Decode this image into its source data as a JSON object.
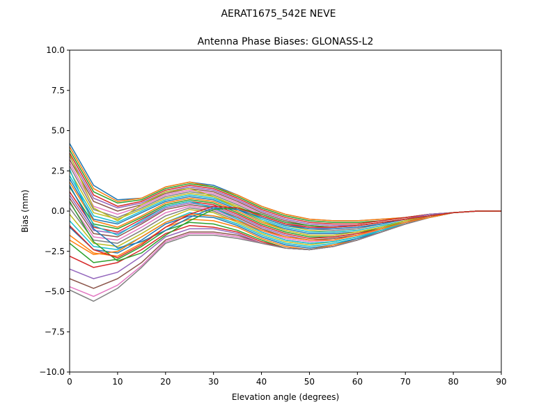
{
  "figure": {
    "suptitle": "AERAT1675_542E  NEVE"
  },
  "chart_data": {
    "type": "line",
    "title": "Antenna Phase Biases: GLONASS-L2",
    "xlabel": "Elevation angle (degrees)",
    "ylabel": "Bias (mm)",
    "xlim": [
      0,
      90
    ],
    "ylim": [
      -10,
      10
    ],
    "xticks": [
      0,
      10,
      20,
      30,
      40,
      50,
      60,
      70,
      80,
      90
    ],
    "xtick_labels": [
      "0",
      "10",
      "20",
      "30",
      "40",
      "50",
      "60",
      "70",
      "80",
      "90"
    ],
    "yticks": [
      10,
      7.5,
      5,
      2.5,
      0,
      -2.5,
      -5,
      -7.5,
      -10
    ],
    "ytick_labels": [
      "10.0",
      "7.5",
      "5.0",
      "2.5",
      "0.0",
      "−2.5",
      "−5.0",
      "−7.5",
      "−10.0"
    ],
    "grid": false,
    "legend": "none",
    "colors": [
      "#1f77b4",
      "#ff7f0e",
      "#2ca02c",
      "#d62728",
      "#9467bd",
      "#8c564b",
      "#e377c2",
      "#7f7f7f",
      "#bcbd22",
      "#17becf"
    ],
    "x": [
      0,
      5,
      10,
      15,
      20,
      25,
      30,
      35,
      40,
      45,
      50,
      55,
      60,
      65,
      70,
      75,
      80,
      85,
      90
    ],
    "series": [
      {
        "values": [
          4.2,
          1.6,
          0.7,
          0.8,
          1.5,
          1.8,
          1.6,
          1.0,
          0.3,
          -0.2,
          -0.5,
          -0.6,
          -0.6,
          -0.5,
          -0.4,
          -0.2,
          -0.1,
          0.0,
          0.0
        ]
      },
      {
        "values": [
          4.0,
          1.4,
          0.6,
          0.8,
          1.5,
          1.8,
          1.5,
          1.0,
          0.3,
          -0.2,
          -0.5,
          -0.6,
          -0.6,
          -0.5,
          -0.4,
          -0.2,
          -0.1,
          0.0,
          0.0
        ]
      },
      {
        "values": [
          3.8,
          1.2,
          0.5,
          0.7,
          1.4,
          1.7,
          1.5,
          0.9,
          0.2,
          -0.3,
          -0.6,
          -0.7,
          -0.7,
          -0.6,
          -0.4,
          -0.2,
          -0.1,
          0.0,
          0.0
        ]
      },
      {
        "values": [
          3.6,
          1.0,
          0.3,
          0.6,
          1.3,
          1.6,
          1.4,
          0.8,
          0.1,
          -0.4,
          -0.7,
          -0.8,
          -0.8,
          -0.6,
          -0.4,
          -0.2,
          -0.1,
          0.0,
          0.0
        ]
      },
      {
        "values": [
          3.4,
          0.8,
          0.2,
          0.5,
          1.2,
          1.5,
          1.3,
          0.7,
          0.0,
          -0.5,
          -0.8,
          -0.9,
          -0.9,
          -0.7,
          -0.5,
          -0.2,
          -0.1,
          0.0,
          0.0
        ]
      },
      {
        "values": [
          3.2,
          0.6,
          0.0,
          0.4,
          1.1,
          1.4,
          1.2,
          0.6,
          -0.1,
          -0.6,
          -0.9,
          -1.0,
          -0.9,
          -0.7,
          -0.5,
          -0.3,
          -0.1,
          0.0,
          0.0
        ]
      },
      {
        "values": [
          3.0,
          0.3,
          -0.2,
          0.3,
          1.0,
          1.3,
          1.1,
          0.5,
          -0.2,
          -0.7,
          -1.0,
          -1.1,
          -1.0,
          -0.8,
          -0.5,
          -0.3,
          -0.1,
          0.0,
          0.0
        ]
      },
      {
        "values": [
          2.8,
          0.1,
          -0.4,
          0.2,
          0.9,
          1.2,
          1.0,
          0.4,
          -0.3,
          -0.8,
          -1.1,
          -1.2,
          -1.1,
          -0.8,
          -0.5,
          -0.3,
          -0.1,
          0.0,
          0.0
        ]
      },
      {
        "values": [
          2.5,
          -0.1,
          -0.5,
          0.1,
          0.8,
          1.1,
          0.9,
          0.3,
          -0.4,
          -0.9,
          -1.2,
          -1.3,
          -1.2,
          -0.9,
          -0.6,
          -0.3,
          -0.1,
          0.0,
          0.0
        ]
      },
      {
        "values": [
          2.2,
          -0.3,
          -0.7,
          0.0,
          0.7,
          1.0,
          0.8,
          0.2,
          -0.5,
          -1.0,
          -1.3,
          -1.3,
          -1.2,
          -0.9,
          -0.6,
          -0.3,
          -0.1,
          0.0,
          0.0
        ]
      },
      {
        "values": [
          2.0,
          -0.5,
          -0.8,
          -0.1,
          0.6,
          0.9,
          0.7,
          0.1,
          -0.6,
          -1.1,
          -1.4,
          -1.4,
          -1.3,
          -1.0,
          -0.6,
          -0.3,
          -0.1,
          0.0,
          0.0
        ]
      },
      {
        "values": [
          1.8,
          -0.6,
          -1.0,
          -0.3,
          0.5,
          0.8,
          0.6,
          0.0,
          -0.7,
          -1.2,
          -1.5,
          -1.5,
          -1.3,
          -1.0,
          -0.6,
          -0.3,
          -0.1,
          0.0,
          0.0
        ]
      },
      {
        "values": [
          1.5,
          -0.8,
          -1.1,
          -0.4,
          0.4,
          0.7,
          0.5,
          -0.1,
          -0.8,
          -1.3,
          -1.6,
          -1.6,
          -1.4,
          -1.0,
          -0.7,
          -0.3,
          -0.1,
          0.0,
          0.0
        ]
      },
      {
        "values": [
          1.2,
          -1.0,
          -1.3,
          -0.5,
          0.3,
          0.6,
          0.4,
          -0.2,
          -0.9,
          -1.4,
          -1.7,
          -1.6,
          -1.4,
          -1.1,
          -0.7,
          -0.3,
          -0.1,
          0.0,
          0.0
        ]
      },
      {
        "values": [
          1.0,
          -1.2,
          -1.4,
          -0.7,
          0.2,
          0.5,
          0.3,
          -0.3,
          -1.0,
          -1.5,
          -1.8,
          -1.7,
          -1.5,
          -1.1,
          -0.7,
          -0.4,
          -0.1,
          0.0,
          0.0
        ]
      },
      {
        "values": [
          0.8,
          -1.4,
          -1.6,
          -0.8,
          0.1,
          0.4,
          0.2,
          -0.4,
          -1.1,
          -1.6,
          -1.8,
          -1.7,
          -1.5,
          -1.1,
          -0.7,
          -0.4,
          -0.1,
          0.0,
          0.0
        ]
      },
      {
        "values": [
          0.5,
          -1.6,
          -1.8,
          -1.0,
          -0.1,
          0.3,
          0.1,
          -0.5,
          -1.2,
          -1.7,
          -1.9,
          -1.8,
          -1.5,
          -1.2,
          -0.7,
          -0.4,
          -0.1,
          0.0,
          0.0
        ]
      },
      {
        "values": [
          0.2,
          -1.8,
          -2.0,
          -1.2,
          -0.3,
          0.2,
          0.0,
          -0.6,
          -1.3,
          -1.8,
          -2.0,
          -1.9,
          -1.6,
          -1.2,
          -0.8,
          -0.4,
          -0.1,
          0.0,
          0.0
        ]
      },
      {
        "values": [
          -0.2,
          -2.0,
          -2.2,
          -1.4,
          -0.5,
          0.1,
          -0.1,
          -0.7,
          -1.4,
          -1.9,
          -2.1,
          -1.9,
          -1.6,
          -1.2,
          -0.8,
          -0.4,
          -0.1,
          0.0,
          0.0
        ]
      },
      {
        "values": [
          -0.6,
          -2.2,
          -2.4,
          -1.6,
          -0.7,
          -0.1,
          -0.3,
          -0.8,
          -1.5,
          -2.0,
          -2.2,
          -2.0,
          -1.7,
          -1.2,
          -0.8,
          -0.4,
          -0.1,
          0.0,
          0.0
        ]
      },
      {
        "values": [
          -1.0,
          -2.4,
          -2.6,
          -1.8,
          -0.8,
          -0.3,
          -0.4,
          -0.9,
          -1.6,
          -2.1,
          -2.3,
          -2.1,
          -1.7,
          -1.3,
          -0.8,
          -0.4,
          -0.1,
          0.0,
          0.0
        ]
      },
      {
        "values": [
          -1.5,
          -2.6,
          -2.8,
          -2.0,
          -1.0,
          -0.5,
          -0.6,
          -1.0,
          -1.7,
          -2.2,
          -2.4,
          -2.1,
          -1.8,
          -1.3,
          -0.8,
          -0.4,
          -0.1,
          0.0,
          0.0
        ]
      },
      {
        "values": [
          -2.0,
          -3.2,
          -3.0,
          -2.2,
          -1.2,
          -0.7,
          -0.8,
          -1.2,
          -1.8,
          -2.3,
          -2.4,
          -2.2,
          -1.8,
          -1.3,
          -0.8,
          -0.4,
          -0.1,
          0.0,
          0.0
        ]
      },
      {
        "values": [
          -2.8,
          -3.5,
          -3.2,
          -2.4,
          -1.4,
          -0.9,
          -1.0,
          -1.3,
          -1.9,
          -2.3,
          -2.4,
          -2.2,
          -1.8,
          -1.3,
          -0.8,
          -0.4,
          -0.1,
          0.0,
          0.0
        ]
      },
      {
        "values": [
          -3.6,
          -4.2,
          -3.8,
          -2.8,
          -1.6,
          -1.1,
          -1.1,
          -1.4,
          -2.0,
          -2.3,
          -2.4,
          -2.2,
          -1.8,
          -1.3,
          -0.8,
          -0.4,
          -0.1,
          0.0,
          0.0
        ]
      },
      {
        "values": [
          -4.2,
          -4.8,
          -4.2,
          -3.2,
          -1.8,
          -1.3,
          -1.3,
          -1.5,
          -2.0,
          -2.3,
          -2.4,
          -2.2,
          -1.8,
          -1.3,
          -0.8,
          -0.4,
          -0.1,
          0.0,
          0.0
        ]
      },
      {
        "values": [
          -4.7,
          -5.3,
          -4.6,
          -3.4,
          -1.9,
          -1.4,
          -1.4,
          -1.6,
          -2.0,
          -2.3,
          -2.4,
          -2.2,
          -1.8,
          -1.3,
          -0.8,
          -0.4,
          -0.1,
          0.0,
          0.0
        ]
      },
      {
        "values": [
          -4.9,
          -5.6,
          -4.8,
          -3.5,
          -2.0,
          -1.5,
          -1.5,
          -1.7,
          -2.0,
          -2.3,
          -2.4,
          -2.2,
          -1.8,
          -1.3,
          -0.8,
          -0.4,
          -0.1,
          0.0,
          0.0
        ]
      },
      {
        "values": [
          3.5,
          0.2,
          -0.6,
          0.4,
          1.2,
          1.4,
          0.9,
          0.2,
          -0.6,
          -1.2,
          -1.5,
          -1.5,
          -1.3,
          -1.0,
          -0.6,
          -0.3,
          -0.1,
          0.0,
          0.0
        ]
      },
      {
        "values": [
          2.6,
          -0.9,
          -1.5,
          -0.6,
          0.3,
          0.6,
          0.2,
          -0.5,
          -1.3,
          -1.8,
          -2.0,
          -1.9,
          -1.6,
          -1.2,
          -0.7,
          -0.4,
          -0.1,
          0.0,
          0.0
        ]
      },
      {
        "values": [
          1.6,
          -1.1,
          -2.3,
          -1.9,
          -1.2,
          -0.4,
          0.2,
          0.1,
          -0.4,
          -0.9,
          -1.1,
          -1.1,
          -1.0,
          -0.8,
          -0.5,
          -0.3,
          -0.1,
          0.0,
          0.0
        ]
      },
      {
        "values": [
          -1.8,
          -2.7,
          -2.5,
          -1.6,
          -0.7,
          -0.2,
          -0.3,
          -0.6,
          -1.2,
          -1.6,
          -1.8,
          -1.8,
          -1.5,
          -1.1,
          -0.7,
          -0.4,
          -0.1,
          0.0,
          0.0
        ]
      },
      {
        "values": [
          0.6,
          -1.9,
          -3.1,
          -2.6,
          -1.5,
          -0.6,
          0.1,
          0.2,
          -0.2,
          -0.7,
          -0.9,
          -1.0,
          -0.9,
          -0.7,
          -0.5,
          -0.3,
          -0.1,
          0.0,
          0.0
        ]
      },
      {
        "values": [
          -0.9,
          -2.4,
          -2.9,
          -2.1,
          -1.0,
          -0.2,
          0.3,
          0.2,
          -0.3,
          -0.8,
          -1.0,
          -1.0,
          -0.9,
          -0.7,
          -0.5,
          -0.3,
          -0.1,
          0.0,
          0.0
        ]
      }
    ]
  }
}
